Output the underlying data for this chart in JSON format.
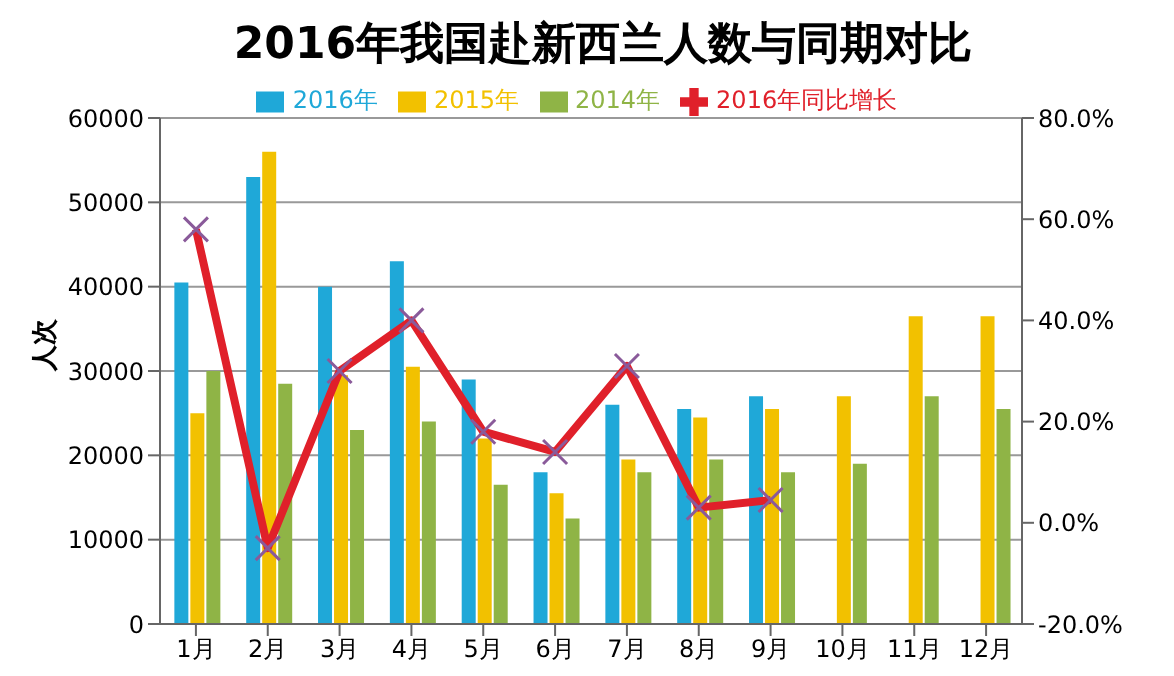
{
  "chart_data": {
    "type": "bar",
    "title": "2016年我国赴新西兰人数与同期对比",
    "ylabel": "人次",
    "categories": [
      "1月",
      "2月",
      "3月",
      "4月",
      "5月",
      "6月",
      "7月",
      "8月",
      "9月",
      "10月",
      "11月",
      "12月"
    ],
    "series": [
      {
        "name": "2016年",
        "color": "#1fa8d8",
        "values": [
          40500,
          53000,
          40000,
          43000,
          29000,
          18000,
          26000,
          25500,
          27000,
          null,
          null,
          null
        ]
      },
      {
        "name": "2015年",
        "color": "#f2c100",
        "values": [
          25000,
          56000,
          29500,
          30500,
          22000,
          15500,
          19500,
          24500,
          25500,
          27000,
          36500,
          36500
        ]
      },
      {
        "name": "2014年",
        "color": "#8fb446",
        "values": [
          30000,
          28500,
          23000,
          24000,
          16500,
          12500,
          18000,
          19500,
          18000,
          19000,
          27000,
          25500
        ]
      },
      {
        "name": "2016年同比增长",
        "type": "line",
        "axis": "y2",
        "color": "#e0202a",
        "marker": "cross",
        "values": [
          58,
          -5,
          30,
          40,
          18,
          14,
          31,
          3,
          4.5,
          null,
          null,
          null
        ]
      }
    ],
    "ylim": [
      0,
      60000
    ],
    "yticks": [
      0,
      10000,
      20000,
      30000,
      40000,
      50000,
      60000
    ],
    "y2lim": [
      -20,
      80
    ],
    "y2ticks": [
      {
        "value": -20,
        "label": "-20.0%"
      },
      {
        "value": 0,
        "label": "0.0%"
      },
      {
        "value": 20,
        "label": "20.0%"
      },
      {
        "value": 40,
        "label": "40.0%"
      },
      {
        "value": 60,
        "label": "60.0%"
      },
      {
        "value": 80,
        "label": "80.0%"
      }
    ],
    "grid": "y",
    "legend": "top"
  }
}
